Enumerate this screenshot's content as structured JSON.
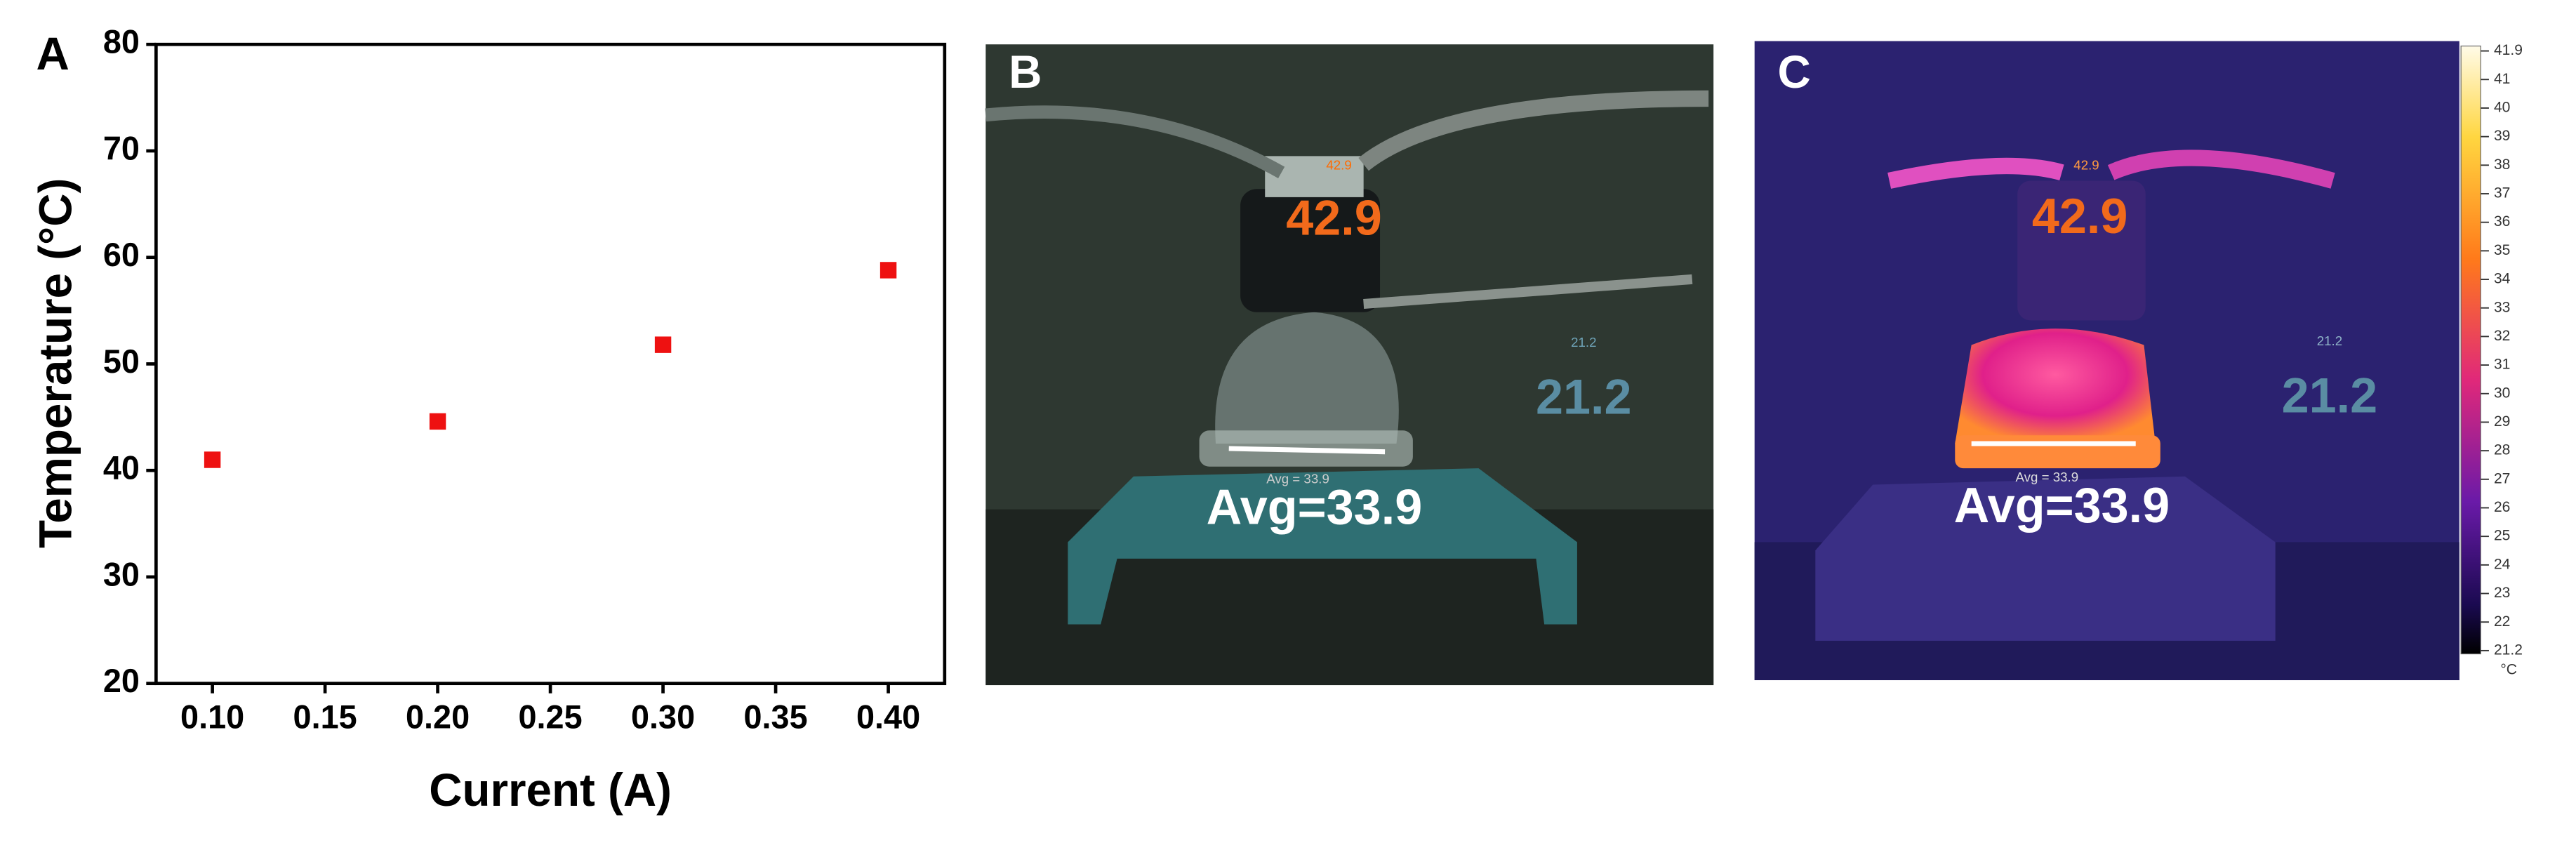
{
  "panels": {
    "a": "A",
    "b": "B",
    "c": "C"
  },
  "chart_data": {
    "type": "scatter",
    "x_label": "Current (A)",
    "y_label": "Temperature (°C)",
    "x": [
      0.1,
      0.2,
      0.3,
      0.4
    ],
    "series": [
      {
        "color": "#ee1111",
        "values": [
          41,
          44.6,
          51.8,
          58.8
        ]
      }
    ],
    "xlim": [
      0.075,
      0.425
    ],
    "xticks": [
      {
        "value": 0.1,
        "label": "0.10"
      },
      0.15,
      {
        "value": 0.2,
        "label": "0.20"
      },
      0.25,
      {
        "value": 0.3,
        "label": "0.30"
      },
      0.35,
      {
        "value": 0.4,
        "label": "0.40"
      }
    ],
    "ylim": [
      20,
      80
    ],
    "yticks": [
      20,
      30,
      40,
      50,
      60,
      70,
      80
    ],
    "grid": false
  },
  "photo_b": {
    "hot": "42.9",
    "hot_small": "42.9",
    "cold": "21.2",
    "cold_small": "21.2",
    "avg": "Avg=33.9",
    "avg_small": "Avg = 33.9"
  },
  "photo_c": {
    "hot": "42.9",
    "hot_small": "42.9",
    "cold": "21.2",
    "cold_small": "21.2",
    "avg": "Avg=33.9",
    "avg_small": "Avg = 33.9"
  },
  "colorbar": {
    "ticks": [
      "41.9",
      "41",
      "40",
      "39",
      "38",
      "37",
      "36",
      "35",
      "34",
      "33",
      "32",
      "31",
      "30",
      "29",
      "28",
      "27",
      "26",
      "25",
      "24",
      "23",
      "22",
      "21.2"
    ],
    "unit": "°C"
  }
}
